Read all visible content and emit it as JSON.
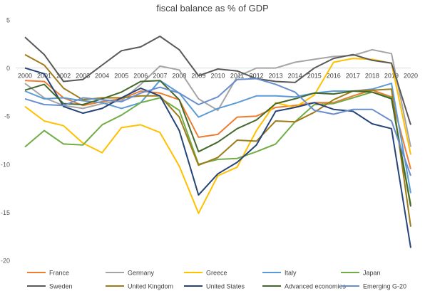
{
  "chart_data": {
    "type": "line",
    "title": "fiscal balance as % of GDP",
    "xlabel": "",
    "ylabel": "",
    "x": [
      "2000",
      "2001",
      "2002",
      "2003",
      "2004",
      "2005",
      "2006",
      "2007",
      "2008",
      "2009",
      "2010",
      "2011",
      "2012",
      "2013",
      "2014",
      "2015",
      "2016",
      "2017",
      "2018",
      "2019",
      "2020"
    ],
    "ylim": [
      -20,
      5
    ],
    "yticks": [
      5,
      0,
      -5,
      -10,
      -15,
      -20
    ],
    "grid": false,
    "legend": "bottom",
    "series": [
      {
        "name": "France",
        "color": "#ed7d31",
        "values": [
          -1.3,
          -1.4,
          -3.1,
          -3.9,
          -3.5,
          -3.2,
          -2.4,
          -2.6,
          -3.3,
          -7.2,
          -6.9,
          -5.1,
          -5.0,
          -4.1,
          -3.9,
          -3.6,
          -3.6,
          -2.9,
          -2.3,
          -3.0,
          -10.5
        ]
      },
      {
        "name": "Germany",
        "color": "#a5a5a5",
        "values": [
          -1.6,
          -3.1,
          -3.9,
          -4.2,
          -3.7,
          -3.4,
          -1.7,
          0.2,
          -0.2,
          -3.2,
          -4.4,
          -0.9,
          0.0,
          0.0,
          0.6,
          0.9,
          1.2,
          1.3,
          1.9,
          1.5,
          -8.2
        ]
      },
      {
        "name": "Greece",
        "color": "#ffc000",
        "values": [
          -4.0,
          -5.5,
          -6.0,
          -7.8,
          -8.8,
          -6.2,
          -5.9,
          -6.7,
          -10.2,
          -15.1,
          -11.2,
          -10.3,
          -6.5,
          -3.6,
          -4.1,
          -2.8,
          0.6,
          1.0,
          0.9,
          0.5,
          -9.0
        ]
      },
      {
        "name": "Italy",
        "color": "#5b9bd5",
        "values": [
          -2.4,
          -3.2,
          -3.1,
          -3.4,
          -3.6,
          -4.2,
          -3.6,
          -1.3,
          -2.6,
          -5.1,
          -4.2,
          -3.6,
          -2.9,
          -2.9,
          -3.0,
          -2.6,
          -2.4,
          -2.4,
          -2.2,
          -1.6,
          -13.0
        ]
      },
      {
        "name": "Japan",
        "color": "#70ad47",
        "values": [
          -8.2,
          -6.5,
          -7.9,
          -8.0,
          -5.9,
          -4.9,
          -3.6,
          -3.1,
          -4.4,
          -10.0,
          -9.5,
          -9.4,
          -8.7,
          -7.9,
          -5.6,
          -3.8,
          -3.7,
          -3.1,
          -2.5,
          -3.1,
          -14.2
        ]
      },
      {
        "name": "Sweden",
        "color": "#595959",
        "values": [
          3.2,
          1.4,
          -1.4,
          -1.2,
          0.3,
          1.8,
          2.2,
          3.3,
          1.9,
          -0.8,
          -0.1,
          -0.3,
          -1.1,
          -1.4,
          -1.5,
          0.0,
          1.0,
          1.4,
          0.8,
          0.5,
          -5.9
        ]
      },
      {
        "name": "United Kingdom",
        "color": "#9e7c1a",
        "values": [
          1.4,
          0.3,
          -2.1,
          -3.3,
          -3.1,
          -3.1,
          -2.9,
          -2.9,
          -5.1,
          -10.1,
          -9.3,
          -7.5,
          -7.6,
          -5.5,
          -5.6,
          -4.6,
          -3.3,
          -2.4,
          -2.3,
          -2.2,
          -16.5
        ]
      },
      {
        "name": "United States",
        "color": "#264478",
        "values": [
          0.0,
          -0.6,
          -4.0,
          -4.7,
          -4.2,
          -3.1,
          -2.1,
          -2.9,
          -6.5,
          -13.2,
          -11.0,
          -9.8,
          -8.0,
          -4.5,
          -4.1,
          -3.6,
          -4.3,
          -4.5,
          -5.8,
          -6.3,
          -18.7
        ]
      },
      {
        "name": "Advanced economies",
        "color": "#43682b",
        "values": [
          -2.3,
          -1.7,
          -3.7,
          -3.8,
          -3.2,
          -2.5,
          -1.4,
          -1.3,
          -3.3,
          -8.7,
          -7.7,
          -6.3,
          -5.4,
          -3.7,
          -3.2,
          -2.6,
          -2.7,
          -2.4,
          -2.5,
          -3.2,
          -14.4
        ]
      },
      {
        "name": "Emerging G-20",
        "color": "#698ed0",
        "values": [
          -3.2,
          -3.8,
          -3.9,
          -3.1,
          -3.3,
          -3.5,
          -2.6,
          -2.0,
          -2.6,
          -3.8,
          -3.0,
          -1.2,
          -1.1,
          -1.7,
          -2.5,
          -4.4,
          -4.8,
          -4.3,
          -4.3,
          -5.5,
          -11.2
        ]
      }
    ]
  }
}
